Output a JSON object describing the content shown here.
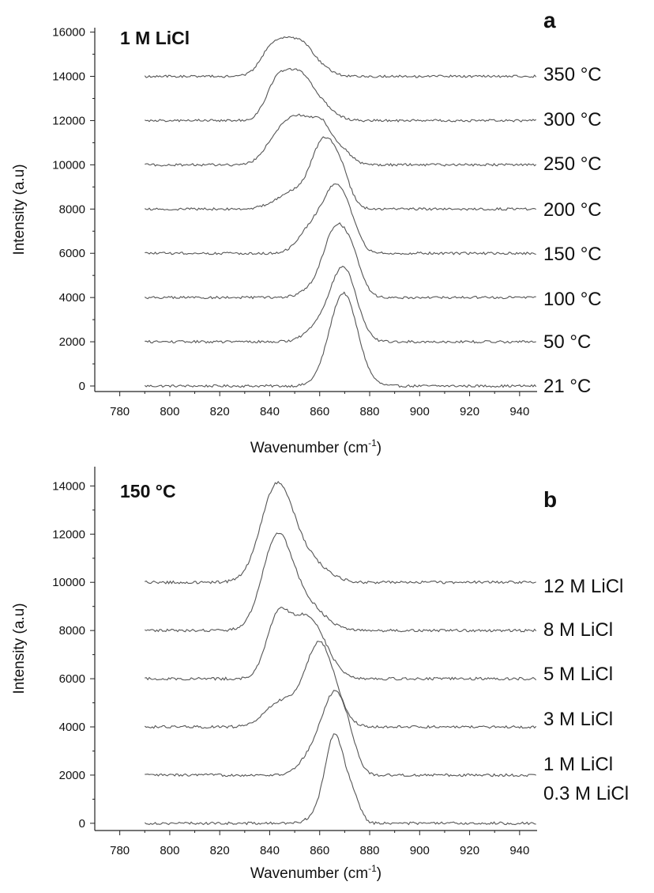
{
  "chart_data": [
    {
      "type": "line",
      "panel_letter": "a",
      "condition_label": "1 M LiCl",
      "xlabel": "Wavenumber (cm",
      "xlabel_sup": "-1",
      "xlabel_end": ")",
      "ylabel": "Intensity (a.u)",
      "xlim": [
        770,
        947
      ],
      "ylim": [
        -250,
        16200
      ],
      "x_ticks": [
        780,
        800,
        820,
        840,
        860,
        880,
        900,
        920,
        940
      ],
      "x_tick_labels": [
        "780",
        "800",
        "820",
        "840",
        "860",
        "880",
        "900",
        "920",
        "940"
      ],
      "y_ticks": [
        0,
        2000,
        4000,
        6000,
        8000,
        10000,
        12000,
        14000,
        16000
      ],
      "y_tick_labels": [
        "0",
        "2000",
        "4000",
        "6000",
        "8000",
        "10000",
        "12000",
        "14000",
        "16000"
      ],
      "x_range": [
        790,
        947
      ],
      "series": [
        {
          "name": "21 °C",
          "offset": 0,
          "peaks": [
            {
              "c": 869.5,
              "w": 5.6,
              "h": 4200
            }
          ]
        },
        {
          "name": "50 °C",
          "offset": 2000,
          "peaks": [
            {
              "c": 870,
              "w": 5,
              "h": 3000
            },
            {
              "c": 862,
              "w": 6,
              "h": 900
            }
          ]
        },
        {
          "name": "100 °C",
          "offset": 4000,
          "peaks": [
            {
              "c": 866,
              "w": 4.5,
              "h": 2800
            },
            {
              "c": 873,
              "w": 4,
              "h": 1600
            },
            {
              "c": 858,
              "w": 5,
              "h": 400
            }
          ]
        },
        {
          "name": "150 °C",
          "offset": 6000,
          "peaks": [
            {
              "c": 866,
              "w": 4.5,
              "h": 2600
            },
            {
              "c": 872,
              "w": 4,
              "h": 1000
            },
            {
              "c": 857,
              "w": 5,
              "h": 1200
            }
          ]
        },
        {
          "name": "200 °C",
          "offset": 8000,
          "peaks": [
            {
              "c": 861,
              "w": 4.5,
              "h": 2600
            },
            {
              "c": 868,
              "w": 4,
              "h": 1600
            },
            {
              "c": 850,
              "w": 7,
              "h": 800
            }
          ]
        },
        {
          "name": "250 °C",
          "offset": 10000,
          "peaks": [
            {
              "c": 861,
              "w": 4,
              "h": 1600
            },
            {
              "c": 852,
              "w": 5,
              "h": 1900
            },
            {
              "c": 843,
              "w": 5,
              "h": 1200
            },
            {
              "c": 869,
              "w": 4,
              "h": 600
            }
          ]
        },
        {
          "name": "300 °C",
          "offset": 12000,
          "peaks": [
            {
              "c": 843,
              "w": 4.5,
              "h": 1700
            },
            {
              "c": 852,
              "w": 5,
              "h": 1900
            },
            {
              "c": 861,
              "w": 5,
              "h": 600
            }
          ]
        },
        {
          "name": "350 °C",
          "offset": 14000,
          "peaks": [
            {
              "c": 842,
              "w": 5,
              "h": 1450
            },
            {
              "c": 852,
              "w": 5,
              "h": 1400
            },
            {
              "c": 860,
              "w": 5,
              "h": 300
            }
          ]
        }
      ]
    },
    {
      "type": "line",
      "panel_letter": "b",
      "condition_label": "150 °C",
      "xlabel": "Wavenumber (cm",
      "xlabel_sup": "-1",
      "xlabel_end": ")",
      "ylabel": "Intensity (a.u)",
      "xlim": [
        770,
        947
      ],
      "ylim": [
        -300,
        14800
      ],
      "x_ticks": [
        780,
        800,
        820,
        840,
        860,
        880,
        900,
        920,
        940
      ],
      "x_tick_labels": [
        "780",
        "800",
        "820",
        "840",
        "860",
        "880",
        "900",
        "920",
        "940"
      ],
      "y_ticks": [
        0,
        2000,
        4000,
        6000,
        8000,
        10000,
        12000,
        14000
      ],
      "y_tick_labels": [
        "0",
        "2000",
        "4000",
        "6000",
        "8000",
        "10000",
        "12000",
        "14000"
      ],
      "x_range": [
        790,
        947
      ],
      "series": [
        {
          "name": "0.3 M LiCl",
          "offset": 0,
          "peaks": [
            {
              "c": 866,
              "w": 3.6,
              "h": 3500
            },
            {
              "c": 873,
              "w": 3,
              "h": 1100
            },
            {
              "c": 860,
              "w": 4,
              "h": 400
            }
          ]
        },
        {
          "name": "1 M LiCl",
          "offset": 2000,
          "peaks": [
            {
              "c": 866,
              "w": 4.5,
              "h": 3000
            },
            {
              "c": 872,
              "w": 3.5,
              "h": 900
            },
            {
              "c": 858,
              "w": 5,
              "h": 1000
            }
          ]
        },
        {
          "name": "3 M LiCl",
          "offset": 4000,
          "peaks": [
            {
              "c": 860,
              "w": 6,
              "h": 3500
            },
            {
              "c": 844,
              "w": 6,
              "h": 1000
            }
          ]
        },
        {
          "name": "5 M LiCl",
          "offset": 6000,
          "peaks": [
            {
              "c": 843,
              "w": 4.5,
              "h": 2200
            },
            {
              "c": 855,
              "w": 7,
              "h": 2600
            }
          ]
        },
        {
          "name": "8 M LiCl",
          "offset": 8000,
          "peaks": [
            {
              "c": 843,
              "w": 6,
              "h": 3800
            },
            {
              "c": 855,
              "w": 7,
              "h": 1000
            }
          ]
        },
        {
          "name": "12 M LiCl",
          "offset": 10000,
          "peaks": [
            {
              "c": 843,
              "w": 6.5,
              "h": 4000
            },
            {
              "c": 856,
              "w": 7,
              "h": 800
            }
          ]
        }
      ]
    }
  ]
}
